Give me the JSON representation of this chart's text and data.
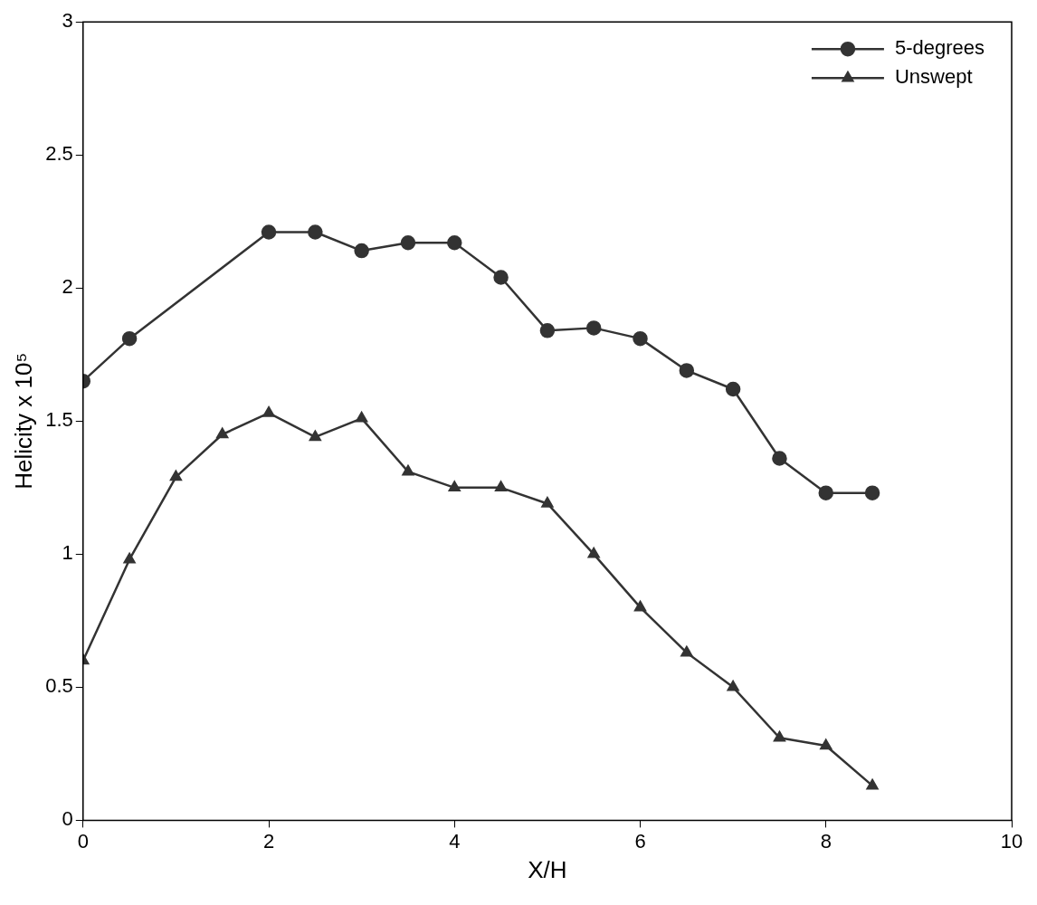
{
  "chart_data": {
    "type": "line",
    "xlabel": "X/H",
    "ylabel": "Helicity x 10⁵",
    "xlim": [
      0,
      10
    ],
    "xticks": [
      0,
      2,
      4,
      6,
      8,
      10
    ],
    "ylim": [
      0,
      3
    ],
    "yticks": [
      0,
      0.5,
      1,
      1.5,
      2,
      2.5,
      3
    ],
    "grid": false,
    "legend": "top right",
    "line_style": "solid",
    "x": [
      0,
      0.5,
      2,
      2.5,
      3,
      3.5,
      4,
      4.5,
      5,
      5.5,
      6,
      6.5,
      7,
      7.5,
      8,
      8.5
    ],
    "series": [
      {
        "name": "5-degrees",
        "color": "#333333",
        "marker": "circle",
        "values": [
          1.65,
          1.81,
          2.21,
          2.21,
          2.14,
          2.17,
          2.17,
          2.04,
          1.84,
          1.85,
          1.81,
          1.69,
          1.62,
          1.36,
          1.23,
          1.23
        ]
      },
      {
        "name": "Unswept",
        "color": "#333333",
        "marker": "triangle",
        "x": [
          0,
          0.5,
          1,
          1.5,
          2,
          2.5,
          3,
          3.5,
          4,
          4.5,
          5,
          5.5,
          6,
          6.5,
          7,
          7.5,
          8,
          8.5
        ],
        "values": [
          0.6,
          0.98,
          1.29,
          1.45,
          1.53,
          1.44,
          1.51,
          1.31,
          1.25,
          1.25,
          1.19,
          1.0,
          0.8,
          0.63,
          0.5,
          0.31,
          0.28,
          0.13
        ]
      }
    ]
  }
}
